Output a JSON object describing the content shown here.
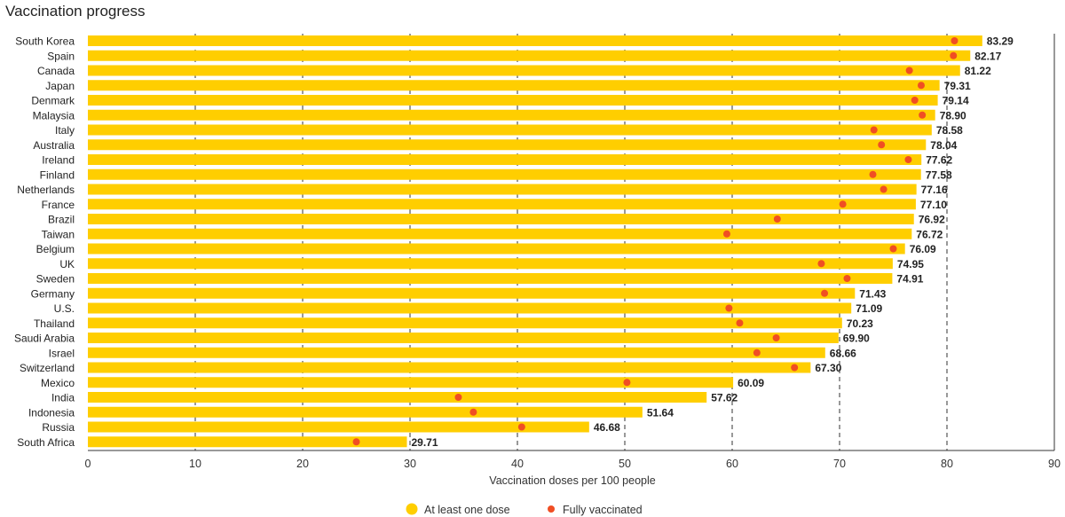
{
  "chart_data": {
    "type": "bar",
    "orientation": "horizontal",
    "title": "Vaccination progress",
    "xlabel": "Vaccination doses per 100 people",
    "ylabel": "",
    "xlim": [
      0,
      90
    ],
    "xticks": [
      0,
      10,
      20,
      30,
      40,
      50,
      60,
      70,
      80,
      90
    ],
    "grid": "vertical, dashed",
    "legend_position": "bottom-center",
    "categories": [
      "South Korea",
      "Spain",
      "Canada",
      "Japan",
      "Denmark",
      "Malaysia",
      "Italy",
      "Australia",
      "Ireland",
      "Finland",
      "Netherlands",
      "France",
      "Brazil",
      "Taiwan",
      "Belgium",
      "UK",
      "Sweden",
      "Germany",
      "U.S.",
      "Thailand",
      "Saudi Arabia",
      "Israel",
      "Switzerland",
      "Mexico",
      "India",
      "Indonesia",
      "Russia",
      "South Africa"
    ],
    "series": [
      {
        "name": "At least one dose",
        "mark": "bar",
        "color": "#FFCE00",
        "values": [
          83.29,
          82.17,
          81.22,
          79.31,
          79.14,
          78.9,
          78.58,
          78.04,
          77.62,
          77.58,
          77.16,
          77.1,
          76.92,
          76.72,
          76.09,
          74.95,
          74.91,
          71.43,
          71.09,
          70.23,
          69.9,
          68.66,
          67.3,
          60.09,
          57.62,
          51.64,
          46.68,
          29.71
        ],
        "labels": [
          "83.29",
          "82.17",
          "81.22",
          "79.31",
          "79.14",
          "78.90",
          "78.58",
          "78.04",
          "77.62",
          "77.58",
          "77.16",
          "77.10",
          "76.92",
          "76.72",
          "76.09",
          "74.95",
          "74.91",
          "71.43",
          "71.09",
          "70.23",
          "69.90",
          "68.66",
          "67.30",
          "60.09",
          "57.62",
          "51.64",
          "46.68",
          "29.71"
        ]
      },
      {
        "name": "Fully vaccinated",
        "mark": "dot",
        "color": "#F04E23",
        "values": [
          80.7,
          80.6,
          76.5,
          77.6,
          77.0,
          77.7,
          73.2,
          73.9,
          76.4,
          73.1,
          74.1,
          70.3,
          64.2,
          59.5,
          75.0,
          68.3,
          70.7,
          68.6,
          59.7,
          60.7,
          64.1,
          62.3,
          65.8,
          50.2,
          34.5,
          35.9,
          40.4,
          25.0
        ]
      }
    ]
  }
}
